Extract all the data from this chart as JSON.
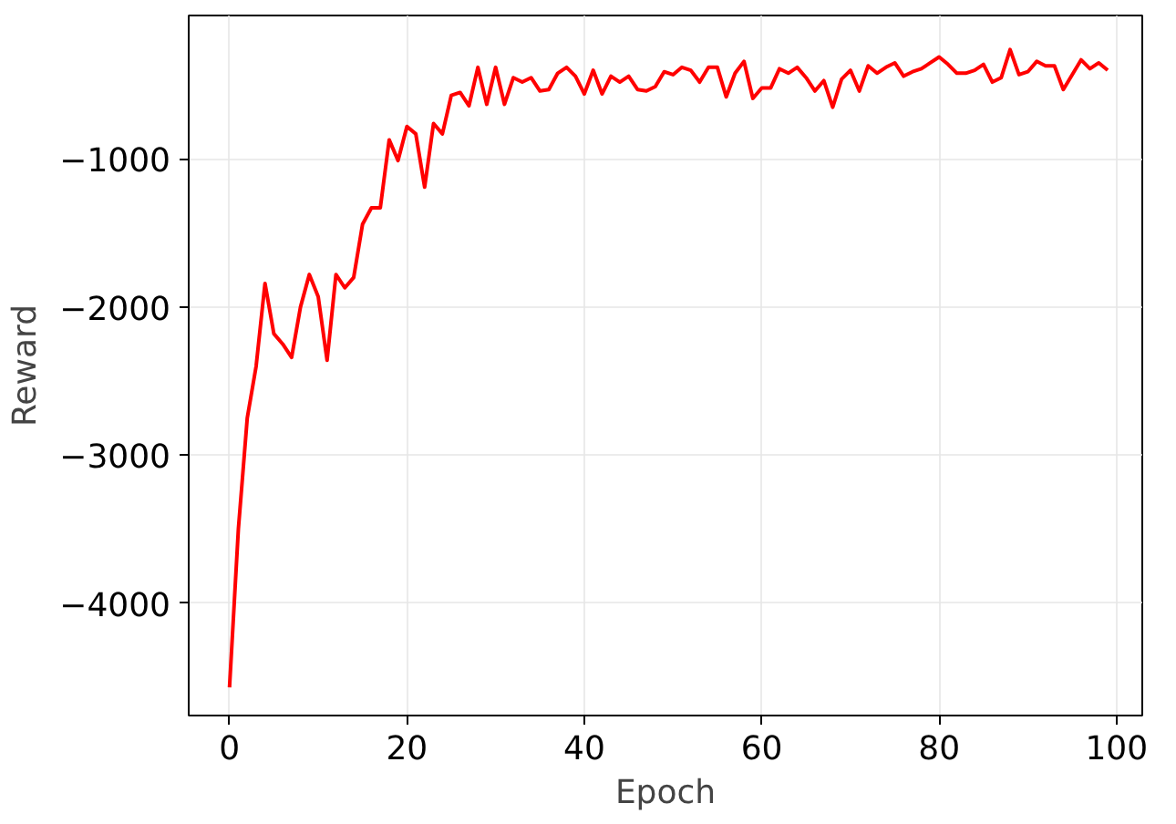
{
  "chart_data": {
    "type": "line",
    "xlabel": "Epoch",
    "ylabel": "Reward",
    "x": [
      0,
      1,
      2,
      3,
      4,
      5,
      6,
      7,
      8,
      9,
      10,
      11,
      12,
      13,
      14,
      15,
      16,
      17,
      18,
      19,
      20,
      21,
      22,
      23,
      24,
      25,
      26,
      27,
      28,
      29,
      30,
      31,
      32,
      33,
      34,
      35,
      36,
      37,
      38,
      39,
      40,
      41,
      42,
      43,
      44,
      45,
      46,
      47,
      48,
      49,
      50,
      51,
      52,
      53,
      54,
      55,
      56,
      57,
      58,
      59,
      60,
      61,
      62,
      63,
      64,
      65,
      66,
      67,
      68,
      69,
      70,
      71,
      72,
      73,
      74,
      75,
      76,
      77,
      78,
      79,
      80,
      81,
      82,
      83,
      84,
      85,
      86,
      87,
      88,
      89,
      90,
      91,
      92,
      93,
      94,
      95,
      96,
      97,
      98,
      99
    ],
    "series": [
      {
        "color": "#ff0000",
        "values": [
          -4570,
          -3500,
          -2750,
          -2400,
          -1840,
          -2180,
          -2250,
          -2340,
          -2000,
          -1780,
          -1930,
          -2360,
          -1780,
          -1870,
          -1800,
          -1440,
          -1330,
          -1330,
          -870,
          -1010,
          -780,
          -830,
          -1190,
          -760,
          -830,
          -570,
          -550,
          -640,
          -380,
          -630,
          -380,
          -630,
          -450,
          -480,
          -450,
          -540,
          -530,
          -420,
          -380,
          -440,
          -560,
          -400,
          -560,
          -440,
          -480,
          -440,
          -530,
          -540,
          -510,
          -410,
          -430,
          -380,
          -400,
          -480,
          -380,
          -380,
          -580,
          -420,
          -340,
          -590,
          -520,
          -520,
          -390,
          -420,
          -380,
          -450,
          -540,
          -470,
          -650,
          -460,
          -400,
          -540,
          -370,
          -420,
          -380,
          -350,
          -440,
          -410,
          -390,
          -350,
          -310,
          -360,
          -420,
          -420,
          -400,
          -360,
          -480,
          -450,
          -260,
          -430,
          -410,
          -340,
          -370,
          -370,
          -530,
          -430,
          -330,
          -390,
          -350,
          -400
        ]
      }
    ],
    "xlim": [
      -4.6,
      102.9
    ],
    "ylim": [
      -4760,
      -30
    ],
    "xticks": [
      0,
      20,
      40,
      60,
      80,
      100
    ],
    "yticks": [
      {
        "value": -4000,
        "label": "−4000"
      },
      {
        "value": -3000,
        "label": "−3000"
      },
      {
        "value": -2000,
        "label": "−2000"
      },
      {
        "value": -1000,
        "label": "−1000"
      }
    ],
    "grid": true,
    "line_style": "solid",
    "marker": "none"
  }
}
